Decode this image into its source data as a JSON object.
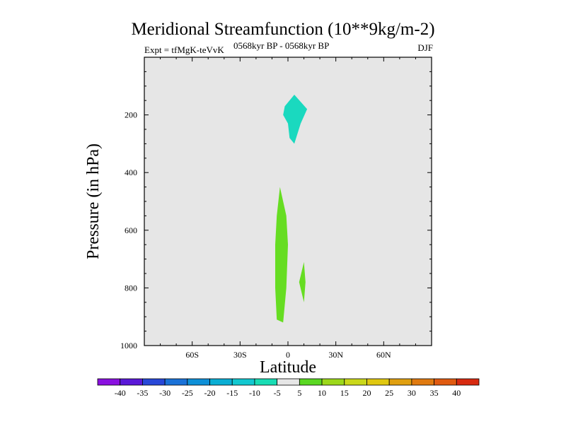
{
  "title": "Meridional Streamfunction (10**9kg/m-2)",
  "subtitle_left": "Expt = tfMgK-teVvK",
  "subtitle_center": "0568kyr BP - 0568kyr BP",
  "subtitle_right": "DJF",
  "colors": {
    "background_plot": "#e6e6e6",
    "axis": "#000000",
    "cyan_contour": "#1ad9bf",
    "green_contour": "#66dd22"
  },
  "chart_data": {
    "type": "contour",
    "title": "Meridional Streamfunction (10**9kg/m-2)",
    "xlabel": "Latitude",
    "ylabel": "Pressure (in hPa)",
    "xlim": [
      -90,
      90
    ],
    "ylim": [
      1000,
      0
    ],
    "x_ticks": [
      {
        "value": -60,
        "label": "60S"
      },
      {
        "value": -30,
        "label": "30S"
      },
      {
        "value": 0,
        "label": "0"
      },
      {
        "value": 30,
        "label": "30N"
      },
      {
        "value": 60,
        "label": "60N"
      }
    ],
    "y_ticks": [
      {
        "value": 200,
        "label": "200"
      },
      {
        "value": 400,
        "label": "400"
      },
      {
        "value": 600,
        "label": "600"
      },
      {
        "value": 800,
        "label": "800"
      },
      {
        "value": 1000,
        "label": "1000"
      }
    ],
    "regions": [
      {
        "name": "upper-cyan",
        "level": "-10 to -5",
        "color": "#1ad9bf",
        "points": [
          [
            4,
            130
          ],
          [
            12,
            180
          ],
          [
            8,
            230
          ],
          [
            4,
            300
          ],
          [
            1,
            280
          ],
          [
            0,
            230
          ],
          [
            -3,
            200
          ],
          [
            -2,
            170
          ]
        ]
      },
      {
        "name": "lower-left-green",
        "level": "5 to 10",
        "color": "#66dd22",
        "points": [
          [
            -5,
            450
          ],
          [
            -1,
            550
          ],
          [
            0,
            650
          ],
          [
            -1,
            800
          ],
          [
            -3,
            920
          ],
          [
            -7,
            910
          ],
          [
            -8,
            800
          ],
          [
            -8,
            650
          ],
          [
            -7,
            550
          ]
        ]
      },
      {
        "name": "lower-right-green",
        "level": "5 to 10",
        "color": "#66dd22",
        "points": [
          [
            10,
            710
          ],
          [
            11,
            780
          ],
          [
            10,
            850
          ],
          [
            7,
            780
          ]
        ]
      }
    ],
    "colorbar": {
      "levels": [
        "-40",
        "-35",
        "-30",
        "-25",
        "-20",
        "-15",
        "-10",
        "-5",
        "5",
        "10",
        "15",
        "20",
        "25",
        "30",
        "35",
        "40"
      ],
      "colors": [
        "#8a10e0",
        "#5a18d8",
        "#2848d8",
        "#1a72d8",
        "#0e90d8",
        "#0aaed4",
        "#12c8d0",
        "#18dcb4",
        "#e6e6e6",
        "#5ad822",
        "#9cd81a",
        "#cad81a",
        "#e0c810",
        "#e0a010",
        "#e07a10",
        "#e05a10",
        "#d82a10"
      ]
    }
  }
}
